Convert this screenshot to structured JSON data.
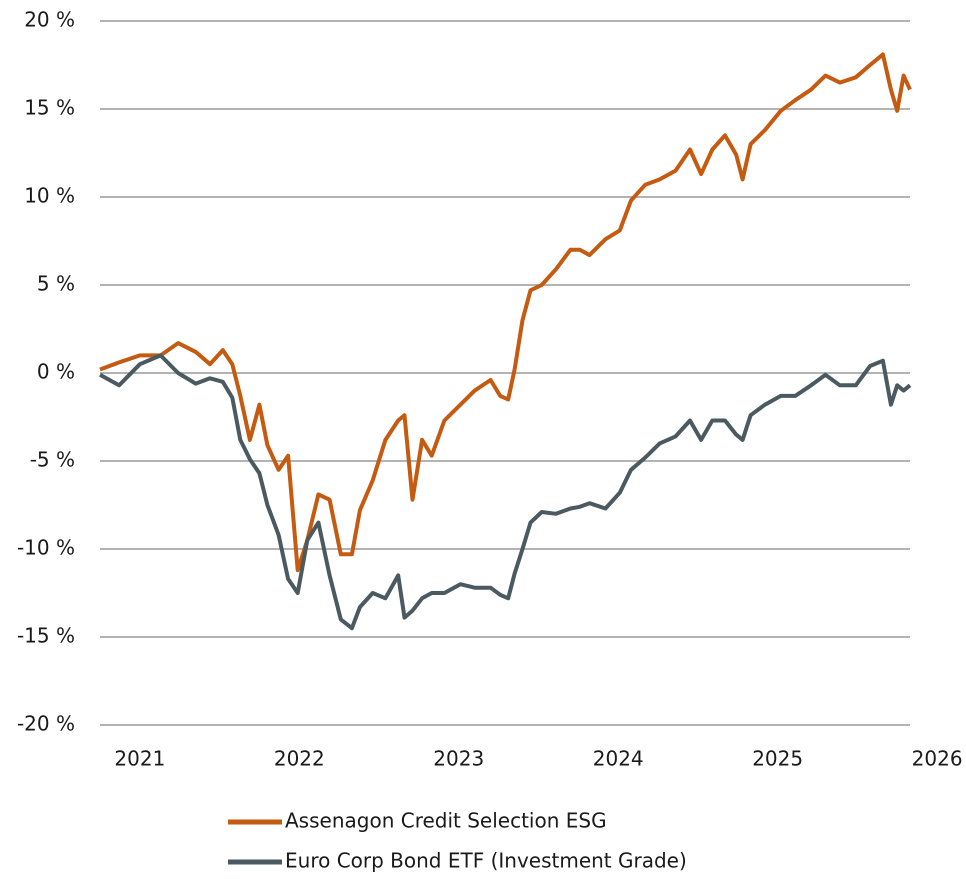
{
  "chart_data": {
    "type": "line",
    "x": [
      2020.75,
      2020.87,
      2021.0,
      2021.13,
      2021.24,
      2021.35,
      2021.44,
      2021.52,
      2021.58,
      2021.63,
      2021.69,
      2021.75,
      2021.8,
      2021.87,
      2021.93,
      2021.99,
      2022.05,
      2022.12,
      2022.19,
      2022.26,
      2022.33,
      2022.38,
      2022.46,
      2022.54,
      2022.62,
      2022.66,
      2022.71,
      2022.77,
      2022.83,
      2022.91,
      2023.01,
      2023.1,
      2023.2,
      2023.26,
      2023.31,
      2023.35,
      2023.4,
      2023.45,
      2023.52,
      2023.61,
      2023.7,
      2023.76,
      2023.82,
      2023.92,
      2024.01,
      2024.08,
      2024.17,
      2024.26,
      2024.36,
      2024.45,
      2024.52,
      2024.59,
      2024.67,
      2024.74,
      2024.78,
      2024.83,
      2024.92,
      2025.02,
      2025.11,
      2025.21,
      2025.3,
      2025.39,
      2025.49,
      2025.58,
      2025.66,
      2025.71,
      2025.75,
      2025.79,
      2025.83
    ],
    "series": [
      {
        "name": "Assenagon Credit Selection ESG",
        "color": "#c55a11",
        "values": [
          0.2,
          0.6,
          1.0,
          1.0,
          1.7,
          1.2,
          0.5,
          1.3,
          0.5,
          -1.3,
          -3.8,
          -1.8,
          -4.1,
          -5.5,
          -4.7,
          -11.2,
          -9.5,
          -6.9,
          -7.2,
          -10.3,
          -10.3,
          -7.8,
          -6.1,
          -3.8,
          -2.7,
          -2.4,
          -7.2,
          -3.8,
          -4.7,
          -2.7,
          -1.8,
          -1.0,
          -0.4,
          -1.3,
          -1.5,
          0.2,
          3.0,
          4.7,
          5.0,
          5.9,
          7.0,
          7.0,
          6.7,
          7.6,
          8.1,
          9.8,
          10.7,
          11.0,
          11.5,
          12.7,
          11.3,
          12.7,
          13.5,
          12.4,
          11.0,
          13.0,
          13.8,
          14.9,
          15.5,
          16.1,
          16.9,
          16.5,
          16.8,
          17.5,
          18.1,
          16.1,
          14.9,
          16.9,
          16.1
        ]
      },
      {
        "name": "Euro Corp Bond ETF (Investment Grade)",
        "color": "#4b5a61",
        "values": [
          -0.1,
          -0.7,
          0.5,
          1.0,
          0.0,
          -0.6,
          -0.3,
          -0.5,
          -1.4,
          -3.8,
          -4.9,
          -5.7,
          -7.5,
          -9.2,
          -11.7,
          -12.5,
          -9.5,
          -8.5,
          -11.5,
          -14.0,
          -14.5,
          -13.3,
          -12.5,
          -12.8,
          -11.5,
          -13.9,
          -13.5,
          -12.8,
          -12.5,
          -12.5,
          -12.0,
          -12.2,
          -12.2,
          -12.6,
          -12.8,
          -11.4,
          -10.0,
          -8.5,
          -7.9,
          -8.0,
          -7.7,
          -7.6,
          -7.4,
          -7.7,
          -6.8,
          -5.5,
          -4.8,
          -4.0,
          -3.6,
          -2.7,
          -3.8,
          -2.7,
          -2.7,
          -3.5,
          -3.8,
          -2.4,
          -1.8,
          -1.3,
          -1.3,
          -0.7,
          -0.1,
          -0.7,
          -0.7,
          0.4,
          0.7,
          -1.8,
          -0.7,
          -1.0,
          -0.7
        ]
      }
    ],
    "xlim": [
      2020.75,
      2025.83
    ],
    "xticks": [
      2021,
      2022,
      2023,
      2024,
      2025,
      2026
    ],
    "ylim": [
      -20,
      20
    ],
    "yticks": [
      {
        "value": -20,
        "label": "-20 %"
      },
      {
        "value": -15,
        "label": "-15 %"
      },
      {
        "value": -10,
        "label": "-10 %"
      },
      {
        "value": -5,
        "label": "-5 %"
      },
      {
        "value": 0,
        "label": "0 %"
      },
      {
        "value": 5,
        "label": "5 %"
      },
      {
        "value": 10,
        "label": "10 %"
      },
      {
        "value": 15,
        "label": "15 %"
      },
      {
        "value": 20,
        "label": "20 %"
      }
    ],
    "grid": true,
    "legend": "bottom"
  }
}
